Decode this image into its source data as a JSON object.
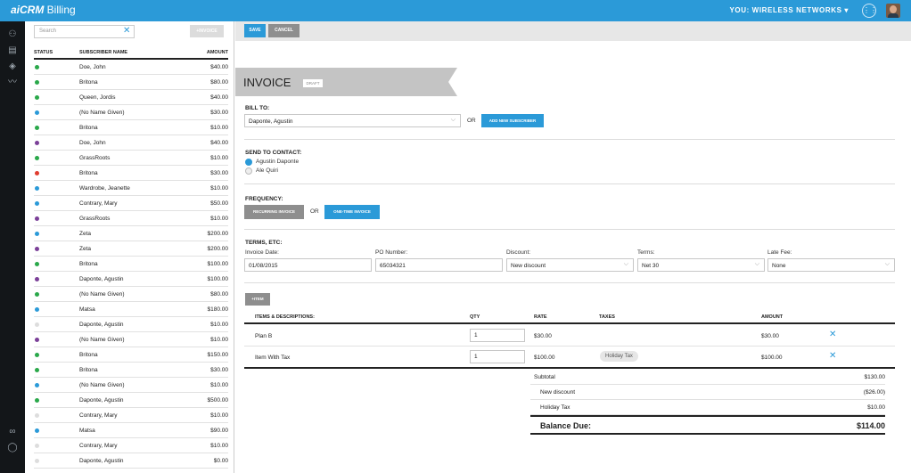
{
  "app": {
    "logo_prefix": "ai",
    "logo_main": "CRM",
    "logo_suffix": " Billing",
    "company": "YOU: WIRELESS NETWORKS",
    "company_chevron": "▾"
  },
  "colors": {
    "brand": "#2b9ad8",
    "rail": "#131619"
  },
  "rail_icons": [
    "users-icon",
    "document-icon",
    "tag-icon",
    "waveform-icon",
    "link-icon",
    "chat-icon"
  ],
  "sidebar": {
    "search_placeholder": "Search",
    "invoice_button": "+INVOICE",
    "columns": {
      "status": "STATUS",
      "name": "SUBSCRIBER NAME",
      "amount": "AMOUNT"
    },
    "rows": [
      {
        "color": "#2aa84a",
        "name": "Doe, John",
        "amount": "$40.00"
      },
      {
        "color": "#2aa84a",
        "name": "Britona",
        "amount": "$80.00"
      },
      {
        "color": "#2aa84a",
        "name": "Queen, Jordis",
        "amount": "$40.00"
      },
      {
        "color": "#2b9ad8",
        "name": "(No Name Given)",
        "amount": "$30.00"
      },
      {
        "color": "#2aa84a",
        "name": "Britona",
        "amount": "$10.00"
      },
      {
        "color": "#7b3f98",
        "name": "Doe, John",
        "amount": "$40.00"
      },
      {
        "color": "#2aa84a",
        "name": "GrassRoots",
        "amount": "$10.00"
      },
      {
        "color": "#e03c2f",
        "name": "Britona",
        "amount": "$30.00"
      },
      {
        "color": "#2b9ad8",
        "name": "Wardrobe, Jeanette",
        "amount": "$10.00"
      },
      {
        "color": "#2b9ad8",
        "name": "Contrary, Mary",
        "amount": "$50.00"
      },
      {
        "color": "#7b3f98",
        "name": "GrassRoots",
        "amount": "$10.00"
      },
      {
        "color": "#2b9ad8",
        "name": "Zeta",
        "amount": "$200.00"
      },
      {
        "color": "#7b3f98",
        "name": "Zeta",
        "amount": "$200.00"
      },
      {
        "color": "#2aa84a",
        "name": "Britona",
        "amount": "$100.00"
      },
      {
        "color": "#7b3f98",
        "name": "Daponte, Agustin",
        "amount": "$100.00"
      },
      {
        "color": "#2aa84a",
        "name": "(No Name Given)",
        "amount": "$80.00"
      },
      {
        "color": "#2b9ad8",
        "name": "Matsa",
        "amount": "$180.00"
      },
      {
        "color": "#dddddd",
        "name": "Daponte, Agustin",
        "amount": "$10.00"
      },
      {
        "color": "#7b3f98",
        "name": "(No Name Given)",
        "amount": "$10.00"
      },
      {
        "color": "#2aa84a",
        "name": "Britona",
        "amount": "$150.00"
      },
      {
        "color": "#2aa84a",
        "name": "Britona",
        "amount": "$30.00"
      },
      {
        "color": "#2b9ad8",
        "name": "(No Name Given)",
        "amount": "$10.00"
      },
      {
        "color": "#2aa84a",
        "name": "Daponte, Agustin",
        "amount": "$500.00"
      },
      {
        "color": "#dddddd",
        "name": "Contrary, Mary",
        "amount": "$10.00"
      },
      {
        "color": "#2b9ad8",
        "name": "Matsa",
        "amount": "$90.00"
      },
      {
        "color": "#dddddd",
        "name": "Contrary, Mary",
        "amount": "$10.00"
      },
      {
        "color": "#dddddd",
        "name": "Daponte, Agustin",
        "amount": "$0.00"
      }
    ]
  },
  "toolbar": {
    "save_label": "SAVE",
    "cancel_label": "CANCEL"
  },
  "invoice": {
    "title": "INVOICE",
    "status": "DRAFT",
    "bill_to": {
      "label": "BILL TO:",
      "value": "Daponte, Agustin",
      "or": "OR",
      "add_button": "ADD NEW SUBSCRIBER"
    },
    "send_to": {
      "label": "SEND TO CONTACT:",
      "options": [
        {
          "label": "Agustin Daponte",
          "selected": true
        },
        {
          "label": "Ale Quiri",
          "selected": false
        }
      ]
    },
    "frequency": {
      "label": "FREQUENCY:",
      "recurring": "RECURRING INVOICE",
      "or": "OR",
      "one_time": "ONE-TIME INVOICE"
    },
    "terms": {
      "label": "TERMS, ETC:",
      "fields": [
        {
          "label": "Invoice Date:",
          "value": "01/08/2015",
          "dropdown": false
        },
        {
          "label": "PO Number:",
          "value": "65034321",
          "dropdown": false
        },
        {
          "label": "Discount:",
          "value": "New discount",
          "dropdown": true
        },
        {
          "label": "Terms:",
          "value": "Net 30",
          "dropdown": true
        },
        {
          "label": "Late Fee:",
          "value": "None",
          "dropdown": true
        }
      ]
    },
    "add_item_button": "+ITEM",
    "items_header": {
      "desc": "ITEMS & DESCRIPTIONS:",
      "qty": "QTY",
      "rate": "RATE",
      "taxes": "TAXES",
      "amount": "AMOUNT"
    },
    "items": [
      {
        "desc": "Plan B",
        "qty": "1",
        "rate": "$30.00",
        "tax": "",
        "amount": "$30.00"
      },
      {
        "desc": "Item With Tax",
        "qty": "1",
        "rate": "$100.00",
        "tax": "Holiday Tax",
        "amount": "$100.00"
      }
    ],
    "totals": [
      {
        "label": "Subtotal",
        "value": "$130.00"
      },
      {
        "label": "New discount",
        "value": "($26.00)"
      },
      {
        "label": "Holiday Tax",
        "value": "$10.00"
      }
    ],
    "balance_due": {
      "label": "Balance Due:",
      "value": "$114.00"
    }
  }
}
